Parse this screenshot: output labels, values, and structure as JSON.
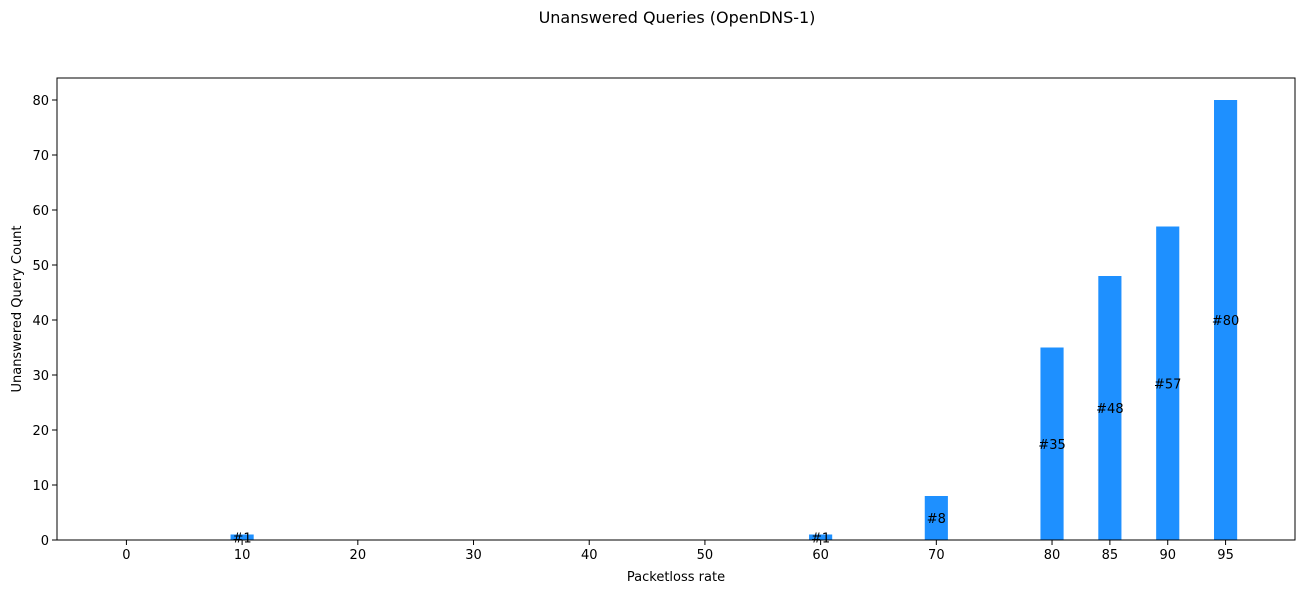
{
  "chart_data": {
    "type": "bar",
    "title": "Unanswered Queries (OpenDNS-1)",
    "xlabel": "Packetloss rate",
    "ylabel": "Unanswered Query Count",
    "x": [
      0,
      10,
      20,
      30,
      40,
      50,
      60,
      70,
      80,
      85,
      90,
      95
    ],
    "values": [
      0,
      1,
      0,
      0,
      0,
      0,
      1,
      8,
      35,
      48,
      57,
      80
    ],
    "bar_labels": [
      "",
      "#1",
      "",
      "",
      "",
      "",
      "#1",
      "#8",
      "#35",
      "#48",
      "#57",
      "#80"
    ],
    "xticks": [
      "0",
      "10",
      "20",
      "30",
      "40",
      "50",
      "60",
      "70",
      "80",
      "85",
      "90",
      "95"
    ],
    "yticks": [
      0,
      10,
      20,
      30,
      40,
      50,
      60,
      70,
      80
    ],
    "xlim": [
      -6,
      101
    ],
    "ylim": [
      0,
      84
    ],
    "bar_width": 2,
    "bar_color": "#1e90ff",
    "grid": false,
    "legend": "none"
  }
}
